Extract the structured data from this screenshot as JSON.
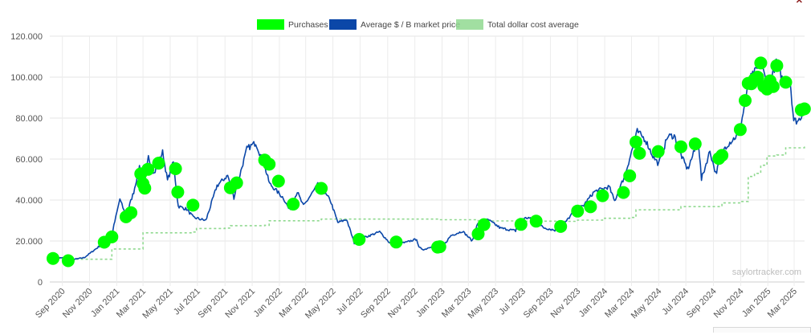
{
  "chart_data": {
    "type": "line",
    "title": "",
    "xlabel": "",
    "ylabel": "",
    "ylim": [
      0,
      120000
    ],
    "yticks": [
      "0",
      "20.000",
      "40.000",
      "60.000",
      "80.000",
      "100.000",
      "120.000"
    ],
    "xticks": [
      "Sep 2020",
      "Nov 2020",
      "Jan 2021",
      "Mar 2021",
      "May 2021",
      "Jul 2021",
      "Sep 2021",
      "Nov 2021",
      "Jan 2022",
      "Mar 2022",
      "May 2022",
      "Jul 2022",
      "Sep 2022",
      "Nov 2022",
      "Jan 2023",
      "Mar 2023",
      "May 2023",
      "Jul 2023",
      "Sep 2023",
      "Nov 2023",
      "Jan 2024",
      "Mar 2024",
      "May 2024",
      "Jul 2024",
      "Sep 2024",
      "Nov 2024",
      "Jan 2025",
      "Mar 2025"
    ],
    "grid": true,
    "legend_position": "top-center",
    "watermark": "saylortracker.com",
    "series": [
      {
        "name": "Purchases",
        "kind": "scatter",
        "color": "#00ff00",
        "points": [
          [
            "2020-08-11",
            11500
          ],
          [
            "2020-09-14",
            10400
          ],
          [
            "2020-12-04",
            19400
          ],
          [
            "2020-12-21",
            22000
          ],
          [
            "2021-01-22",
            31800
          ],
          [
            "2021-02-02",
            33800
          ],
          [
            "2021-02-24",
            52800
          ],
          [
            "2021-03-01",
            48000
          ],
          [
            "2021-03-05",
            45800
          ],
          [
            "2021-03-12",
            55000
          ],
          [
            "2021-04-05",
            58000
          ],
          [
            "2021-05-13",
            55300
          ],
          [
            "2021-05-18",
            43900
          ],
          [
            "2021-06-21",
            37500
          ],
          [
            "2021-09-13",
            46000
          ],
          [
            "2021-09-27",
            48400
          ],
          [
            "2021-11-29",
            59500
          ],
          [
            "2021-12-09",
            57500
          ],
          [
            "2021-12-30",
            49200
          ],
          [
            "2022-02-01",
            38000
          ],
          [
            "2022-04-05",
            45700
          ],
          [
            "2022-06-29",
            20800
          ],
          [
            "2022-09-20",
            19500
          ],
          [
            "2022-12-22",
            17000
          ],
          [
            "2022-12-27",
            17200
          ],
          [
            "2023-03-23",
            23500
          ],
          [
            "2023-04-05",
            28000
          ],
          [
            "2023-06-27",
            28100
          ],
          [
            "2023-07-31",
            29700
          ],
          [
            "2023-09-24",
            27100
          ],
          [
            "2023-11-01",
            34600
          ],
          [
            "2023-11-30",
            36700
          ],
          [
            "2023-12-27",
            42100
          ],
          [
            "2024-02-12",
            43700
          ],
          [
            "2024-02-26",
            51800
          ],
          [
            "2024-03-11",
            68300
          ],
          [
            "2024-03-19",
            62800
          ],
          [
            "2024-04-30",
            63700
          ],
          [
            "2024-06-20",
            66000
          ],
          [
            "2024-07-22",
            67400
          ],
          [
            "2024-09-13",
            60300
          ],
          [
            "2024-09-20",
            61800
          ],
          [
            "2024-10-31",
            74400
          ],
          [
            "2024-11-11",
            88600
          ],
          [
            "2024-11-18",
            97000
          ],
          [
            "2024-11-25",
            96800
          ],
          [
            "2024-12-02",
            99000
          ],
          [
            "2024-12-09",
            100000
          ],
          [
            "2024-12-16",
            106900
          ],
          [
            "2024-12-23",
            95500
          ],
          [
            "2024-12-30",
            94200
          ],
          [
            "2025-01-06",
            98200
          ],
          [
            "2025-01-13",
            95400
          ],
          [
            "2025-01-21",
            105600
          ],
          [
            "2025-02-10",
            97500
          ],
          [
            "2025-03-17",
            84000
          ],
          [
            "2025-03-24",
            84500
          ]
        ]
      },
      {
        "name": "Average $ / B market price",
        "kind": "line",
        "color": "#0b47a8",
        "points": [
          [
            "2020-08-11",
            11400
          ],
          [
            "2020-09-01",
            11800
          ],
          [
            "2020-09-14",
            10500
          ],
          [
            "2020-10-20",
            11900
          ],
          [
            "2020-11-10",
            15300
          ],
          [
            "2020-12-04",
            19300
          ],
          [
            "2020-12-21",
            23000
          ],
          [
            "2021-01-08",
            40500
          ],
          [
            "2021-01-22",
            32000
          ],
          [
            "2021-02-08",
            44000
          ],
          [
            "2021-02-21",
            56500
          ],
          [
            "2021-03-05",
            48000
          ],
          [
            "2021-03-13",
            61000
          ],
          [
            "2021-03-26",
            53000
          ],
          [
            "2021-04-14",
            63500
          ],
          [
            "2021-04-25",
            49500
          ],
          [
            "2021-05-08",
            58500
          ],
          [
            "2021-05-19",
            37000
          ],
          [
            "2021-06-07",
            35500
          ],
          [
            "2021-06-22",
            31500
          ],
          [
            "2021-07-20",
            30000
          ],
          [
            "2021-08-14",
            47000
          ],
          [
            "2021-09-07",
            52000
          ],
          [
            "2021-09-21",
            41500
          ],
          [
            "2021-10-20",
            65000
          ],
          [
            "2021-11-09",
            68000
          ],
          [
            "2021-11-28",
            57000
          ],
          [
            "2021-12-10",
            48000
          ],
          [
            "2022-01-10",
            41000
          ],
          [
            "2022-01-24",
            35000
          ],
          [
            "2022-02-10",
            44000
          ],
          [
            "2022-02-24",
            37000
          ],
          [
            "2022-03-28",
            47500
          ],
          [
            "2022-04-25",
            40000
          ],
          [
            "2022-05-12",
            29000
          ],
          [
            "2022-06-01",
            30500
          ],
          [
            "2022-06-18",
            19000
          ],
          [
            "2022-07-08",
            21500
          ],
          [
            "2022-08-14",
            24500
          ],
          [
            "2022-09-06",
            19000
          ],
          [
            "2022-10-10",
            19200
          ],
          [
            "2022-11-05",
            21000
          ],
          [
            "2022-11-10",
            16800
          ],
          [
            "2022-11-22",
            15800
          ],
          [
            "2022-12-14",
            18000
          ],
          [
            "2022-12-31",
            16500
          ],
          [
            "2023-01-21",
            22700
          ],
          [
            "2023-02-16",
            24800
          ],
          [
            "2023-03-10",
            20000
          ],
          [
            "2023-03-20",
            28000
          ],
          [
            "2023-04-14",
            30400
          ],
          [
            "2023-05-12",
            26300
          ],
          [
            "2023-06-15",
            25000
          ],
          [
            "2023-06-23",
            30500
          ],
          [
            "2023-07-14",
            31400
          ],
          [
            "2023-08-17",
            26500
          ],
          [
            "2023-09-11",
            25300
          ],
          [
            "2023-10-01",
            28000
          ],
          [
            "2023-10-24",
            34500
          ],
          [
            "2023-11-15",
            37500
          ],
          [
            "2023-12-08",
            44000
          ],
          [
            "2024-01-11",
            46500
          ],
          [
            "2024-01-23",
            39500
          ],
          [
            "2024-02-15",
            52000
          ],
          [
            "2024-03-14",
            73500
          ],
          [
            "2024-04-01",
            69500
          ],
          [
            "2024-04-18",
            61500
          ],
          [
            "2024-05-01",
            57500
          ],
          [
            "2024-05-21",
            71000
          ],
          [
            "2024-06-05",
            71500
          ],
          [
            "2024-06-24",
            60000
          ],
          [
            "2024-07-05",
            55000
          ],
          [
            "2024-07-29",
            69000
          ],
          [
            "2024-08-05",
            50000
          ],
          [
            "2024-08-24",
            64000
          ],
          [
            "2024-09-06",
            53000
          ],
          [
            "2024-09-27",
            66000
          ],
          [
            "2024-10-29",
            72500
          ],
          [
            "2024-11-13",
            90000
          ],
          [
            "2024-11-22",
            99000
          ],
          [
            "2024-12-17",
            106500
          ],
          [
            "2025-01-02",
            94000
          ],
          [
            "2025-01-20",
            108000
          ],
          [
            "2025-02-04",
            98000
          ],
          [
            "2025-02-20",
            98500
          ],
          [
            "2025-02-28",
            79000
          ],
          [
            "2025-03-10",
            78500
          ],
          [
            "2025-03-24",
            84000
          ]
        ]
      },
      {
        "name": "Total dollar cost average",
        "kind": "line",
        "dashed": true,
        "color": "#90d990",
        "points": [
          [
            "2020-08-11",
            11650
          ],
          [
            "2020-09-14",
            11100
          ],
          [
            "2020-12-04",
            11100
          ],
          [
            "2020-12-21",
            16100
          ],
          [
            "2021-02-24",
            16100
          ],
          [
            "2021-03-01",
            24000
          ],
          [
            "2021-06-21",
            24400
          ],
          [
            "2021-06-29",
            26100
          ],
          [
            "2021-09-01",
            26300
          ],
          [
            "2021-09-13",
            27500
          ],
          [
            "2021-11-29",
            27700
          ],
          [
            "2021-12-09",
            29900
          ],
          [
            "2022-04-05",
            30700
          ],
          [
            "2022-06-29",
            30700
          ],
          [
            "2022-12-27",
            30400
          ],
          [
            "2023-03-23",
            29800
          ],
          [
            "2023-06-27",
            29700
          ],
          [
            "2023-09-24",
            29600
          ],
          [
            "2023-11-01",
            30200
          ],
          [
            "2023-12-27",
            31100
          ],
          [
            "2024-02-26",
            31500
          ],
          [
            "2024-03-11",
            35200
          ],
          [
            "2024-06-20",
            36800
          ],
          [
            "2024-08-01",
            36800
          ],
          [
            "2024-09-20",
            38600
          ],
          [
            "2024-10-31",
            39300
          ],
          [
            "2024-11-11",
            39300
          ],
          [
            "2024-11-18",
            51500
          ],
          [
            "2024-12-02",
            53000
          ],
          [
            "2024-12-16",
            57000
          ],
          [
            "2024-12-30",
            61500
          ],
          [
            "2025-01-21",
            62000
          ],
          [
            "2025-02-10",
            65500
          ],
          [
            "2025-03-24",
            66500
          ]
        ]
      }
    ]
  }
}
